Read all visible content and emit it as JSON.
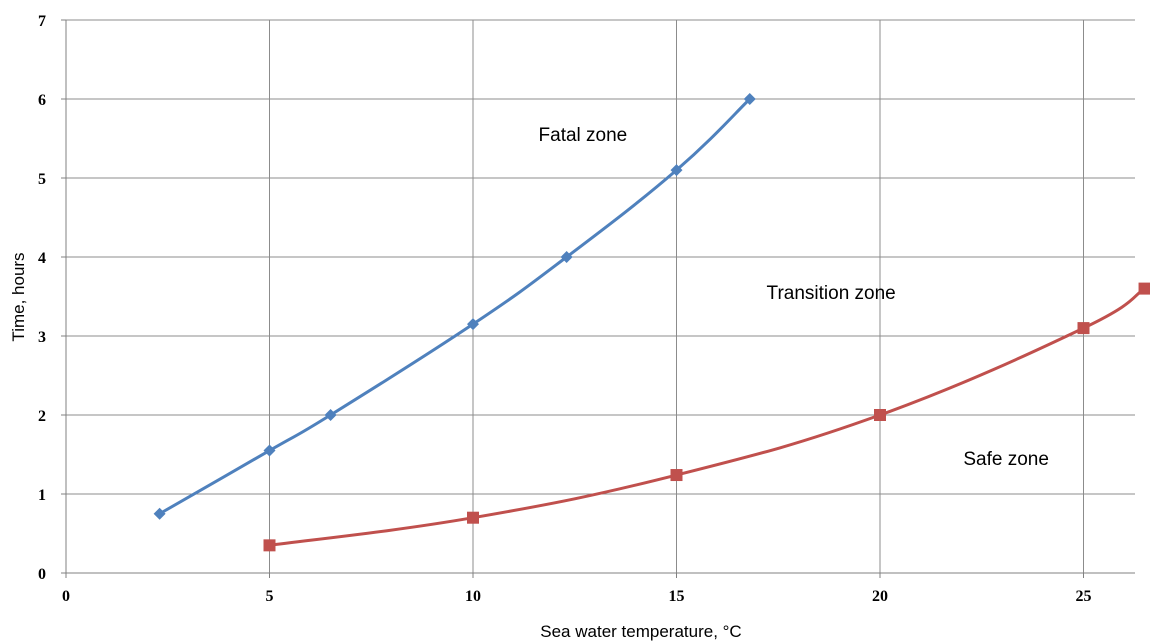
{
  "chart_data": {
    "type": "line",
    "title": "",
    "xlabel": "Sea water temperature, °C",
    "ylabel": "Time, hours",
    "xlim": [
      0,
      26.5
    ],
    "ylim": [
      0,
      7
    ],
    "x_ticks": [
      0,
      5,
      10,
      15,
      20,
      25
    ],
    "y_ticks": [
      0,
      1,
      2,
      3,
      4,
      5,
      6,
      7
    ],
    "grid": true,
    "legend": "none",
    "series": [
      {
        "color": "#4f81bd",
        "marker": "diamond",
        "points": [
          {
            "x": 2.3,
            "y": 0.75
          },
          {
            "x": 5,
            "y": 1.55
          },
          {
            "x": 6.5,
            "y": 2.0
          },
          {
            "x": 10,
            "y": 3.15
          },
          {
            "x": 12.3,
            "y": 4.0
          },
          {
            "x": 15,
            "y": 5.1
          },
          {
            "x": 16.8,
            "y": 6.0
          }
        ]
      },
      {
        "color": "#c0504d",
        "marker": "square",
        "points": [
          {
            "x": 5,
            "y": 0.35
          },
          {
            "x": 10,
            "y": 0.7
          },
          {
            "x": 15,
            "y": 1.24
          },
          {
            "x": 20,
            "y": 2.0
          },
          {
            "x": 25,
            "y": 3.1
          },
          {
            "x": 26.5,
            "y": 3.6
          }
        ]
      }
    ],
    "annotations": [
      {
        "text": "Fatal zone",
        "x": 12.7,
        "y": 5.47
      },
      {
        "text": "Transition zone",
        "x": 18.8,
        "y": 3.47
      },
      {
        "text": "Safe zone",
        "x": 23.1,
        "y": 1.37
      }
    ]
  }
}
